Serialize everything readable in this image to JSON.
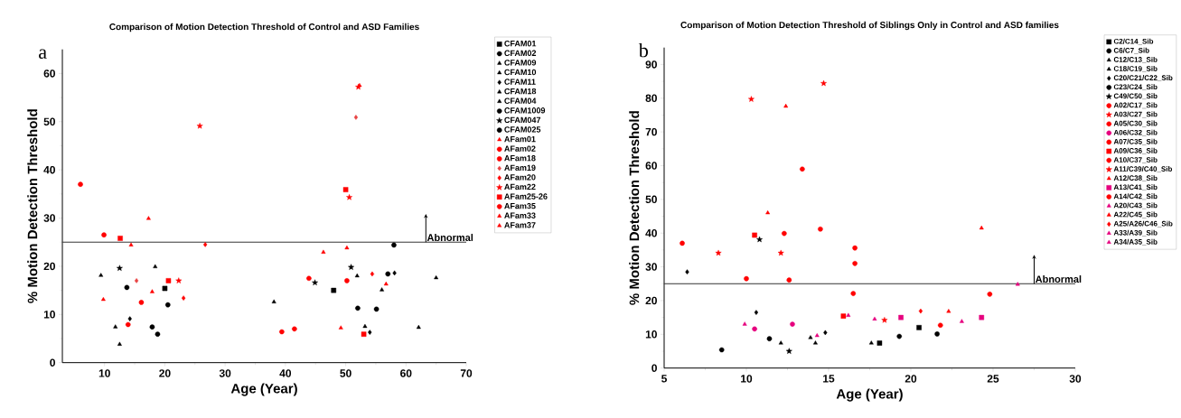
{
  "chart_data": [
    {
      "type": "scatter",
      "title": "Comparison of Motion Detection Threshold of Control and ASD Families",
      "xlabel": "Age (Year)",
      "ylabel": "% Motion Detection Threshold",
      "annotations": [
        "a"
      ],
      "xlim": [
        3,
        70
      ],
      "ylim": [
        0,
        65
      ],
      "xticks": [
        10,
        20,
        30,
        40,
        50,
        60,
        70
      ],
      "yticks": [
        0,
        10,
        20,
        30,
        40,
        50,
        60
      ],
      "legend": "right",
      "ref_lines": [
        {
          "axis": "y",
          "value": 25,
          "label": "Abnormal"
        }
      ],
      "series": [
        {
          "name": "CFAM01",
          "color": "#000000",
          "marker": "square",
          "x": [
            20.0,
            48.0
          ],
          "values": [
            15.4,
            15.0
          ]
        },
        {
          "name": "CFAM02",
          "color": "#000000",
          "marker": "circle",
          "x": [
            20.5,
            17.9,
            18.8,
            58.0,
            55.1,
            57.0
          ],
          "values": [
            12.0,
            7.4,
            5.9,
            24.4,
            11.1,
            18.4
          ]
        },
        {
          "name": "CFAM09",
          "color": "#000000",
          "marker": "triangle",
          "x": [
            9.4,
            38.1
          ],
          "values": [
            18.1,
            12.6
          ]
        },
        {
          "name": "CFAM10",
          "color": "#000000",
          "marker": "triangle",
          "x": [
            12.5,
            56.0,
            65.0
          ],
          "values": [
            3.8,
            15.1,
            17.6
          ]
        },
        {
          "name": "CFAM11",
          "color": "#000000",
          "marker": "diamond",
          "x": [
            14.2,
            54.0,
            58.1
          ],
          "values": [
            9.1,
            6.3,
            18.6
          ]
        },
        {
          "name": "CFAM18",
          "color": "#000000",
          "marker": "triangle",
          "x": [
            11.8,
            51.9
          ],
          "values": [
            7.4,
            18.0
          ]
        },
        {
          "name": "CFAM04",
          "color": "#000000",
          "marker": "triangle",
          "x": [
            18.4,
            53.2,
            62.1
          ],
          "values": [
            19.9,
            7.5,
            7.3
          ]
        },
        {
          "name": "CFAM1009",
          "color": "#000000",
          "marker": "circle",
          "x": [
            52.0
          ],
          "values": [
            11.3
          ]
        },
        {
          "name": "CFAM047",
          "color": "#000000",
          "marker": "star",
          "x": [
            12.5,
            44.9,
            50.9
          ],
          "values": [
            19.6,
            16.6,
            19.8
          ]
        },
        {
          "name": "CFAM025",
          "color": "#000000",
          "marker": "circle",
          "x": [
            13.7
          ],
          "values": [
            15.6
          ]
        },
        {
          "name": "AFam01",
          "color": "#ff0000",
          "marker": "triangle",
          "x": [
            17.3,
            52.3,
            46.3
          ],
          "values": [
            29.9,
            57.5,
            22.9
          ]
        },
        {
          "name": "AFam02",
          "color": "#ff0000",
          "marker": "circle",
          "x": [
            6.0,
            9.9,
            43.9,
            41.5
          ],
          "values": [
            37.0,
            26.5,
            17.5,
            7.0
          ]
        },
        {
          "name": "AFam18",
          "color": "#ff0000",
          "marker": "circle",
          "x": [
            13.9,
            50.2
          ],
          "values": [
            7.9,
            17.0
          ]
        },
        {
          "name": "AFam19",
          "color": "#e84343",
          "marker": "diamond",
          "x": [
            15.3,
            51.7
          ],
          "values": [
            17.0,
            50.9
          ]
        },
        {
          "name": "AFam20",
          "color": "#ff0000",
          "marker": "diamond",
          "x": [
            23.1,
            26.7,
            54.4
          ],
          "values": [
            13.4,
            24.5,
            18.4
          ]
        },
        {
          "name": "AFam22",
          "color": "#ff0000",
          "marker": "star",
          "x": [
            25.8,
            22.3,
            52.1,
            50.6
          ],
          "values": [
            49.1,
            17.0,
            57.2,
            34.3
          ]
        },
        {
          "name": "AFam25-26",
          "color": "#ff0000",
          "marker": "square",
          "x": [
            12.6,
            20.6,
            50.0,
            53.0
          ],
          "values": [
            25.8,
            17.0,
            35.9,
            5.9
          ]
        },
        {
          "name": "AFam35",
          "color": "#ff0000",
          "marker": "circle",
          "x": [
            16.1,
            39.4
          ],
          "values": [
            12.5,
            6.4
          ]
        },
        {
          "name": "AFam33",
          "color": "#ff0000",
          "marker": "triangle",
          "x": [
            9.8,
            17.9,
            50.2,
            49.2
          ],
          "values": [
            13.1,
            14.7,
            23.8,
            7.2
          ]
        },
        {
          "name": "AFam37",
          "color": "#ff0000",
          "marker": "triangle",
          "x": [
            14.4,
            56.7
          ],
          "values": [
            24.4,
            16.3
          ]
        }
      ]
    },
    {
      "type": "scatter",
      "title": "Comparison of Motion Detection Threshold of Siblings Only in Control and ASD families",
      "xlabel": "Age (Year)",
      "ylabel": "% Motion Detection Threshold",
      "annotations": [
        "b"
      ],
      "xlim": [
        5,
        30
      ],
      "ylim": [
        0,
        95
      ],
      "xticks": [
        5,
        10,
        15,
        20,
        25,
        30
      ],
      "yticks": [
        0,
        10,
        20,
        30,
        40,
        50,
        60,
        70,
        80,
        90
      ],
      "legend": "right",
      "ref_lines": [
        {
          "axis": "y",
          "value": 25,
          "label": "Abnormal"
        }
      ],
      "series": [
        {
          "name": "C2/C14_Sib",
          "color": "#000000",
          "marker": "square",
          "x": [
            18.1,
            20.5
          ],
          "values": [
            7.4,
            12.0
          ]
        },
        {
          "name": "C6/C7_Sib",
          "color": "#000000",
          "marker": "circle",
          "x": [
            19.3,
            21.6
          ],
          "values": [
            9.4,
            10.1
          ]
        },
        {
          "name": "C12/C13_Sib",
          "color": "#000000",
          "marker": "triangle",
          "x": [
            14.2,
            17.6
          ],
          "values": [
            7.4,
            7.4
          ]
        },
        {
          "name": "C18/C19_Sib",
          "color": "#000000",
          "marker": "triangle",
          "x": [
            12.1,
            13.9
          ],
          "values": [
            7.4,
            9.0
          ]
        },
        {
          "name": "C20/C21/C22_Sib",
          "color": "#000000",
          "marker": "diamond",
          "x": [
            6.4,
            10.6,
            14.8
          ],
          "values": [
            28.5,
            16.5,
            10.5
          ]
        },
        {
          "name": "C23/C24_Sib",
          "color": "#000000",
          "marker": "circle",
          "x": [
            8.5,
            11.4
          ],
          "values": [
            5.4,
            8.7
          ]
        },
        {
          "name": "C49/C50_Sib",
          "color": "#000000",
          "marker": "star",
          "x": [
            10.8,
            12.6
          ],
          "values": [
            38.1,
            5.0
          ]
        },
        {
          "name": "A02/C17_Sib",
          "color": "#ff0000",
          "marker": "circle",
          "x": [
            6.1,
            10.0,
            12.6
          ],
          "values": [
            37.0,
            26.5,
            26.1
          ]
        },
        {
          "name": "A03/C27_Sib",
          "color": "#ff0000",
          "marker": "star",
          "x": [
            10.3,
            12.1
          ],
          "values": [
            79.7,
            34.1
          ]
        },
        {
          "name": "A05/C30_Sib",
          "color": "#ff0000",
          "marker": "circle",
          "x": [
            14.5,
            24.8
          ],
          "values": [
            41.2,
            21.9
          ]
        },
        {
          "name": "A06/C32_Sib",
          "color": "#e6007e",
          "marker": "circle",
          "x": [
            10.5,
            12.8
          ],
          "values": [
            11.6,
            13.0
          ]
        },
        {
          "name": "A07/C35_Sib",
          "color": "#ff0000",
          "marker": "circle",
          "x": [
            13.4,
            16.6,
            16.5
          ],
          "values": [
            59.0,
            35.6,
            22.1
          ]
        },
        {
          "name": "A09/C36_Sib",
          "color": "#ff0000",
          "marker": "square",
          "x": [
            10.5,
            15.9
          ],
          "values": [
            39.4,
            15.4
          ]
        },
        {
          "name": "A10/C37_Sib",
          "color": "#ff0000",
          "marker": "circle",
          "x": [
            16.6,
            21.8
          ],
          "values": [
            31.0,
            12.7
          ]
        },
        {
          "name": "A11/C39/C40_Sib",
          "color": "#ff0000",
          "marker": "star",
          "x": [
            8.3,
            14.7,
            18.4
          ],
          "values": [
            34.1,
            84.4,
            14.2
          ]
        },
        {
          "name": "A12/C38_Sib",
          "color": "#ff0000",
          "marker": "triangle",
          "x": [
            12.4,
            11.3
          ],
          "values": [
            77.6,
            46.0
          ]
        },
        {
          "name": "A13/C41_Sib",
          "color": "#e6007e",
          "marker": "square",
          "x": [
            19.4,
            24.3
          ],
          "values": [
            15.0,
            15.0
          ]
        },
        {
          "name": "A14/C42_Sib",
          "color": "#ff0000",
          "marker": "circle",
          "x": [
            12.3
          ],
          "values": [
            39.9
          ]
        },
        {
          "name": "A20/C43_Sib",
          "color": "#e6007e",
          "marker": "triangle",
          "x": [
            23.1,
            26.5
          ],
          "values": [
            13.8,
            24.8
          ]
        },
        {
          "name": "A22/C45_Sib",
          "color": "#ff0000",
          "marker": "triangle",
          "x": [
            22.3,
            24.3
          ],
          "values": [
            16.8,
            41.5
          ]
        },
        {
          "name": "A25/A26/C46_Sib",
          "color": "#ff0000",
          "marker": "diamond",
          "x": [
            20.6
          ],
          "values": [
            16.9
          ]
        },
        {
          "name": "A33/A39_Sib",
          "color": "#e6007e",
          "marker": "triangle",
          "x": [
            9.9,
            17.8
          ],
          "values": [
            13.0,
            14.5
          ]
        },
        {
          "name": "A34/A35_Sib",
          "color": "#e6007e",
          "marker": "triangle",
          "x": [
            16.2,
            14.3
          ],
          "values": [
            15.6,
            9.6
          ]
        }
      ]
    }
  ]
}
